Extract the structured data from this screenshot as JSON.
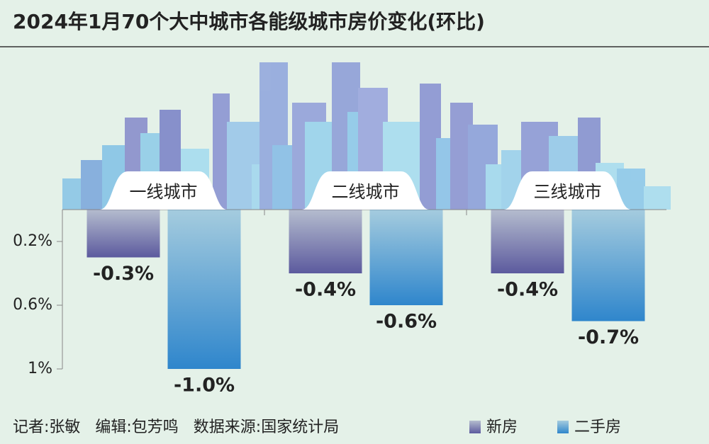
{
  "chart_data": {
    "type": "bar",
    "title": "2024年1月70个大中城市各能级城市房价变化(环比)",
    "categories": [
      "一线城市",
      "二线城市",
      "三线城市"
    ],
    "series": [
      {
        "name": "新房",
        "color": "#5c5a9e",
        "values": [
          -0.3,
          -0.4,
          -0.4
        ],
        "value_labels": [
          "-0.3%",
          "-0.4%",
          "-0.4%"
        ]
      },
      {
        "name": "二手房",
        "color": "#2f86cc",
        "values": [
          -1.0,
          -0.6,
          -0.7
        ],
        "value_labels": [
          "-1.0%",
          "-0.6%",
          "-0.7%"
        ]
      }
    ],
    "ylim": [
      -1,
      0
    ],
    "yticks": [
      {
        "value": -0.2,
        "label": "0.2%"
      },
      {
        "value": -0.6,
        "label": "0.6%"
      },
      {
        "value": -1,
        "label": "1%"
      }
    ],
    "note": "记者:张敏   编辑:包芳鸣   数据来源:国家统计局",
    "legend": "bottom-right"
  }
}
